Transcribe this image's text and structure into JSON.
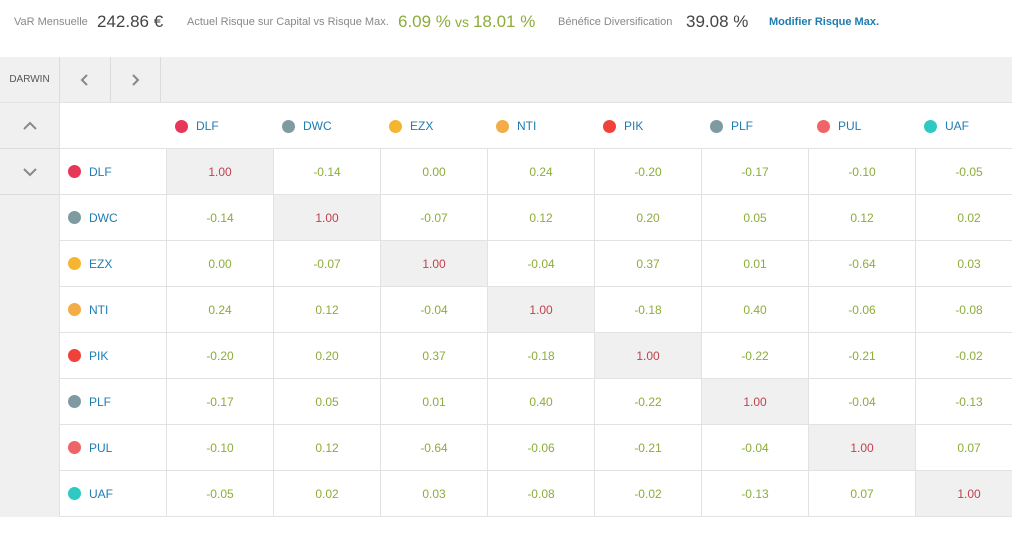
{
  "summary": {
    "var_label": "VaR Mensuelle",
    "var_value": "242.86 €",
    "risk_label": "Actuel Risque sur Capital vs Risque Max.",
    "risk_current": "6.09 %",
    "risk_vs": "vs",
    "risk_max": "18.01 %",
    "div_label": "Bénéfice Diversification",
    "div_value": "39.08 %",
    "modify_link": "Modifier Risque Max."
  },
  "nav": {
    "darwin_label": "DARWIN",
    "prev_icon": "chevron-left-icon",
    "next_icon": "chevron-right-icon",
    "up_icon": "chevron-up-icon",
    "down_icon": "chevron-down-icon"
  },
  "colors": {
    "positive_text": "#8cad3a",
    "diagonal_text": "#c0424f",
    "link": "#1f7bb0"
  },
  "darwins": [
    {
      "name": "DLF",
      "color": "#e8355a"
    },
    {
      "name": "DWC",
      "color": "#7f9aa0"
    },
    {
      "name": "EZX",
      "color": "#f5b531"
    },
    {
      "name": "NTI",
      "color": "#f2ad47"
    },
    {
      "name": "PIK",
      "color": "#f0423b"
    },
    {
      "name": "PLF",
      "color": "#7f9aa0"
    },
    {
      "name": "PUL",
      "color": "#ef6466"
    },
    {
      "name": "UAF",
      "color": "#2ec9c3"
    }
  ],
  "matrix": [
    [
      "1.00",
      "-0.14",
      "0.00",
      "0.24",
      "-0.20",
      "-0.17",
      "-0.10",
      "-0.05"
    ],
    [
      "-0.14",
      "1.00",
      "-0.07",
      "0.12",
      "0.20",
      "0.05",
      "0.12",
      "0.02"
    ],
    [
      "0.00",
      "-0.07",
      "1.00",
      "-0.04",
      "0.37",
      "0.01",
      "-0.64",
      "0.03"
    ],
    [
      "0.24",
      "0.12",
      "-0.04",
      "1.00",
      "-0.18",
      "0.40",
      "-0.06",
      "-0.08"
    ],
    [
      "-0.20",
      "0.20",
      "0.37",
      "-0.18",
      "1.00",
      "-0.22",
      "-0.21",
      "-0.02"
    ],
    [
      "-0.17",
      "0.05",
      "0.01",
      "0.40",
      "-0.22",
      "1.00",
      "-0.04",
      "-0.13"
    ],
    [
      "-0.10",
      "0.12",
      "-0.64",
      "-0.06",
      "-0.21",
      "-0.04",
      "1.00",
      "0.07"
    ],
    [
      "-0.05",
      "0.02",
      "0.03",
      "-0.08",
      "-0.02",
      "-0.13",
      "0.07",
      "1.00"
    ]
  ]
}
